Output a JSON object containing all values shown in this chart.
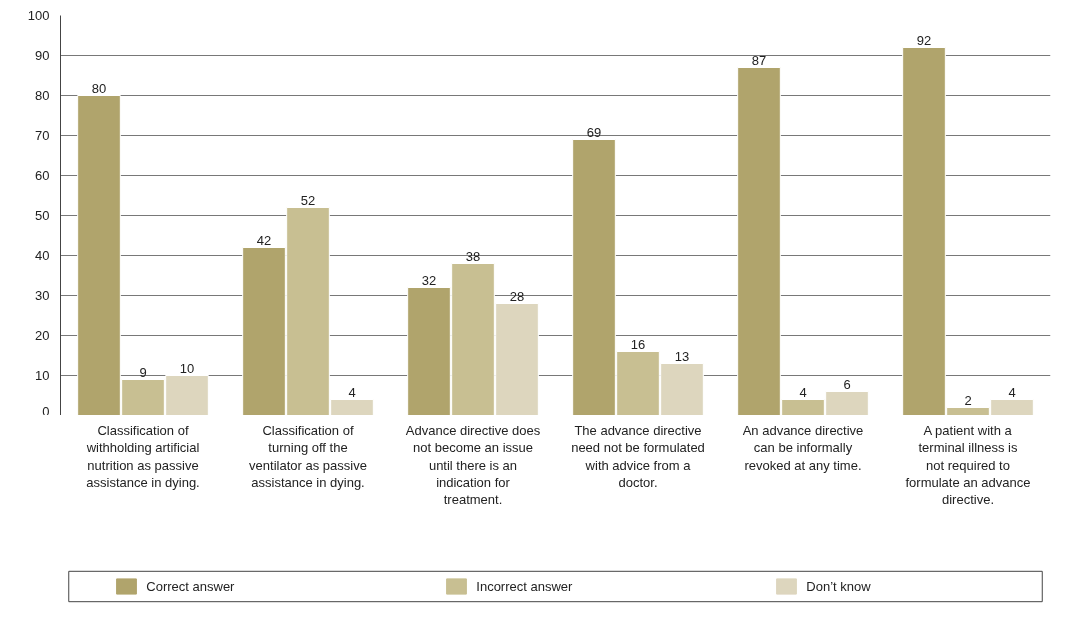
{
  "chart_data": {
    "type": "bar",
    "categories": [
      "Classification of withholding artificial nutrition as passive assistance in dying.",
      "Classification of turning off the ventilator as passive assistance in dying.",
      "Advance directive does not become an issue until there is an indication for treatment.",
      "The advance directive need not be formulated with advice from a doctor.",
      "An advance directive can be informally revoked at any time.",
      "A patient with a terminal illness is not required to formulate an advance directive."
    ],
    "series": [
      {
        "name": "Correct answer",
        "color": "#b0a46c",
        "values": [
          80,
          42,
          32,
          69,
          87,
          92
        ]
      },
      {
        "name": "Incorrect answer",
        "color": "#c8bf92",
        "values": [
          9,
          52,
          38,
          16,
          4,
          2
        ]
      },
      {
        "name": "Don’t know",
        "color": "#ddd6be",
        "values": [
          10,
          4,
          28,
          13,
          6,
          4
        ]
      }
    ],
    "ylim": [
      0,
      100
    ],
    "yticks": [
      0,
      10,
      20,
      30,
      40,
      50,
      60,
      70,
      80,
      90,
      100
    ],
    "grid": "y",
    "legend": "bottom",
    "data_labels": true
  }
}
